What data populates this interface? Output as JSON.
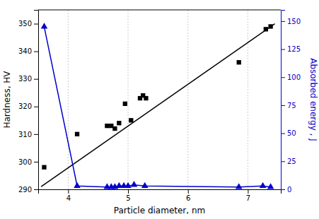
{
  "chart_data": {
    "type": "scatter",
    "xlabel": "Particle diameter, nm",
    "ylabel": "Hardness, HV",
    "y2label": "Absorbed energy , J",
    "xlim": [
      3.5,
      7.55
    ],
    "ylim": [
      290,
      355
    ],
    "y2lim": [
      0,
      160
    ],
    "xticks": [
      4,
      5,
      6,
      7
    ],
    "yticks": [
      290,
      300,
      310,
      320,
      330,
      340,
      350
    ],
    "y2ticks": [
      0,
      25,
      50,
      75,
      100,
      125,
      150
    ],
    "grid": "x",
    "series": [
      {
        "type": "scatter",
        "marker": "square",
        "color": "#000000",
        "x": [
          3.6,
          4.15,
          4.65,
          4.72,
          4.78,
          4.85,
          4.95,
          5.05,
          5.2,
          5.25,
          5.3,
          6.85,
          7.3,
          7.38
        ],
        "values": [
          298,
          310,
          313,
          313,
          312,
          314,
          321,
          315,
          323,
          324,
          323,
          336,
          348,
          349
        ]
      },
      {
        "type": "line",
        "color": "#000000",
        "x": [
          3.55,
          7.45
        ],
        "values": [
          291,
          350
        ]
      },
      {
        "type": "line",
        "marker": "triangle",
        "color": "#0000cc",
        "axis": "y2",
        "x": [
          3.6,
          4.15,
          4.65,
          4.72,
          4.78,
          4.85,
          4.93,
          5.0,
          5.1,
          5.28,
          6.85,
          7.25,
          7.38
        ],
        "values": [
          145,
          3,
          2,
          2,
          2,
          3,
          3,
          3,
          4,
          3,
          2,
          3,
          2
        ]
      }
    ]
  }
}
